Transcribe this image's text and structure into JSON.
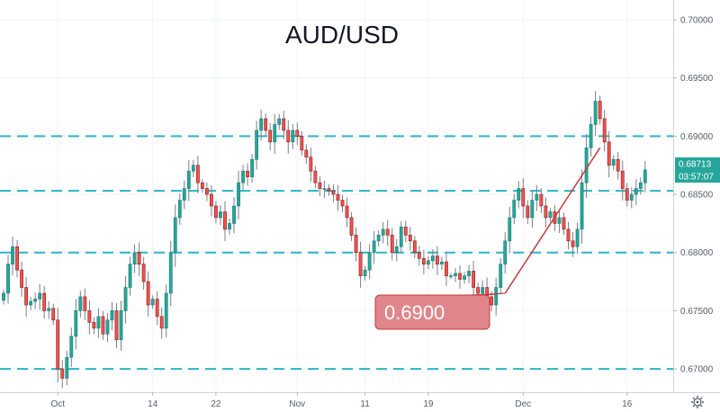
{
  "chart_data": {
    "type": "candlestick",
    "title": "AUD/USD",
    "ylim": [
      0.668,
      0.7017
    ],
    "y_ticks": [
      "0.70000",
      "0.69500",
      "0.69000",
      "0.68500",
      "0.68000",
      "0.67500",
      "0.67000"
    ],
    "x_ticks": [
      {
        "label": "Oct",
        "index": 12
      },
      {
        "label": "14",
        "index": 33
      },
      {
        "label": "22",
        "index": 47
      },
      {
        "label": "Nov",
        "index": 65
      },
      {
        "label": "11",
        "index": 80
      },
      {
        "label": "19",
        "index": 94
      },
      {
        "label": "Dec",
        "index": 115
      },
      {
        "label": "16",
        "index": 138
      }
    ],
    "horizontal_levels": [
      0.69,
      0.6853,
      0.68,
      0.67
    ],
    "last_price": "0.68713",
    "countdown": "03:57:07",
    "annotation": {
      "label": "0.6900",
      "from": [
        111,
        0.6765
      ],
      "to": [
        132,
        0.689
      ]
    },
    "colors": {
      "up": "#26a69a",
      "down": "#ef5350",
      "level": "#2ab4c8",
      "callout": "#e0868a",
      "tag": "#26a69a"
    },
    "closes": [
      0.6765,
      0.679,
      0.6805,
      0.6785,
      0.677,
      0.6755,
      0.6758,
      0.676,
      0.6765,
      0.675,
      0.6752,
      0.6742,
      0.67,
      0.6692,
      0.671,
      0.6728,
      0.675,
      0.6762,
      0.675,
      0.674,
      0.6735,
      0.6745,
      0.673,
      0.6742,
      0.675,
      0.6725,
      0.675,
      0.677,
      0.679,
      0.68,
      0.679,
      0.6775,
      0.6755,
      0.676,
      0.6745,
      0.6735,
      0.6765,
      0.68,
      0.683,
      0.6845,
      0.6855,
      0.687,
      0.6875,
      0.686,
      0.6855,
      0.685,
      0.684,
      0.683,
      0.6835,
      0.682,
      0.6825,
      0.684,
      0.686,
      0.687,
      0.6865,
      0.688,
      0.6905,
      0.6915,
      0.6905,
      0.6895,
      0.691,
      0.6915,
      0.6905,
      0.6895,
      0.6905,
      0.69,
      0.6888,
      0.6882,
      0.687,
      0.686,
      0.6855,
      0.6855,
      0.6853,
      0.685,
      0.6845,
      0.684,
      0.683,
      0.6815,
      0.68,
      0.678,
      0.6785,
      0.68,
      0.681,
      0.6815,
      0.682,
      0.6815,
      0.68,
      0.6805,
      0.6822,
      0.6815,
      0.681,
      0.68,
      0.6795,
      0.679,
      0.6793,
      0.6797,
      0.679,
      0.6792,
      0.678,
      0.678,
      0.6782,
      0.6777,
      0.678,
      0.6784,
      0.677,
      0.6765,
      0.677,
      0.6762,
      0.6755,
      0.677,
      0.679,
      0.681,
      0.683,
      0.6845,
      0.6855,
      0.684,
      0.683,
      0.6845,
      0.685,
      0.684,
      0.683,
      0.6835,
      0.6825,
      0.683,
      0.682,
      0.681,
      0.6805,
      0.682,
      0.686,
      0.689,
      0.691,
      0.693,
      0.6915,
      0.6895,
      0.6875,
      0.688,
      0.687,
      0.6855,
      0.6845,
      0.685,
      0.6855,
      0.686,
      0.6871
    ]
  }
}
